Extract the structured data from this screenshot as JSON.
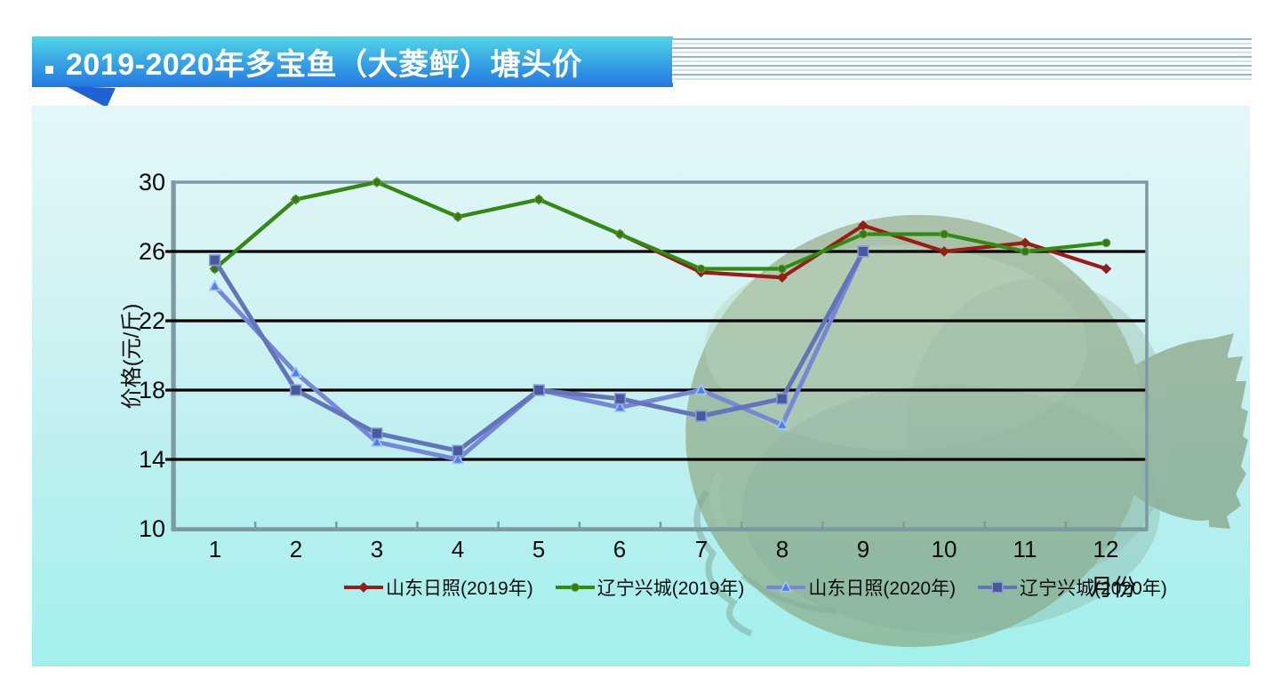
{
  "header": {
    "bullet": ".",
    "title": "2019-2020年多宝鱼（大菱鲆）塘头价"
  },
  "axis": {
    "y_title": "价格(元/斤)",
    "x_title": "月份",
    "y_ticks": [
      "30",
      "26",
      "22",
      "18",
      "14",
      "10"
    ],
    "x_ticks": [
      "1",
      "2",
      "3",
      "4",
      "5",
      "6",
      "7",
      "8",
      "9",
      "10",
      "11",
      "12"
    ]
  },
  "chart_data": {
    "type": "line",
    "title": "2019-2020年多宝鱼（大菱鲆）塘头价",
    "xlabel": "月份",
    "ylabel": "价格(元/斤)",
    "x": [
      1,
      2,
      3,
      4,
      5,
      6,
      7,
      8,
      9,
      10,
      11,
      12
    ],
    "ylim": [
      10,
      30
    ],
    "ytick_interval": 4,
    "grid": "horizontal-black",
    "legend_position": "bottom",
    "background_watermark": "turbot-fish-photo",
    "series": [
      {
        "name": "山东日照(2019年)",
        "color": "#9c1a18",
        "marker": "diamond",
        "marker_fill": "#9c1a18",
        "marker_edge": "#7a2a1a",
        "values": [
          25,
          29,
          30,
          28,
          29,
          27,
          24.8,
          24.5,
          27.5,
          26,
          26.5,
          25
        ]
      },
      {
        "name": "辽宁兴城(2019年)",
        "color": "#2f8c10",
        "marker": "circle",
        "marker_fill": "#2f7d12",
        "marker_edge": "#6d9a3a",
        "values": [
          25,
          29,
          30,
          28,
          29,
          27,
          25,
          25,
          27,
          27,
          26,
          26.5
        ]
      },
      {
        "name": "山东日照(2020年)",
        "color": "#7687d8",
        "marker": "triangle",
        "marker_fill": "#4a80e8",
        "marker_edge": "#a9c4f2",
        "values": [
          24,
          19,
          15,
          14,
          18,
          17,
          18,
          16,
          26,
          null,
          null,
          null
        ]
      },
      {
        "name": "辽宁兴城(2020年)",
        "color": "#6374b8",
        "marker": "square",
        "marker_fill": "#47599f",
        "marker_edge": "#8a9ad0",
        "values": [
          25.5,
          18,
          15.5,
          14.5,
          18,
          17.5,
          16.5,
          17.5,
          26,
          null,
          null,
          null
        ]
      }
    ]
  },
  "colors": {
    "banner_top": "#52d6e6",
    "banner_bottom": "#2478e2",
    "banner_text": "#ffffff",
    "panel_top": "#e3f7f8",
    "panel_bottom": "#a2f0ec",
    "gridline": "#000000",
    "plot_border": "#7d9aa2",
    "fish_body": "#7e905f"
  }
}
